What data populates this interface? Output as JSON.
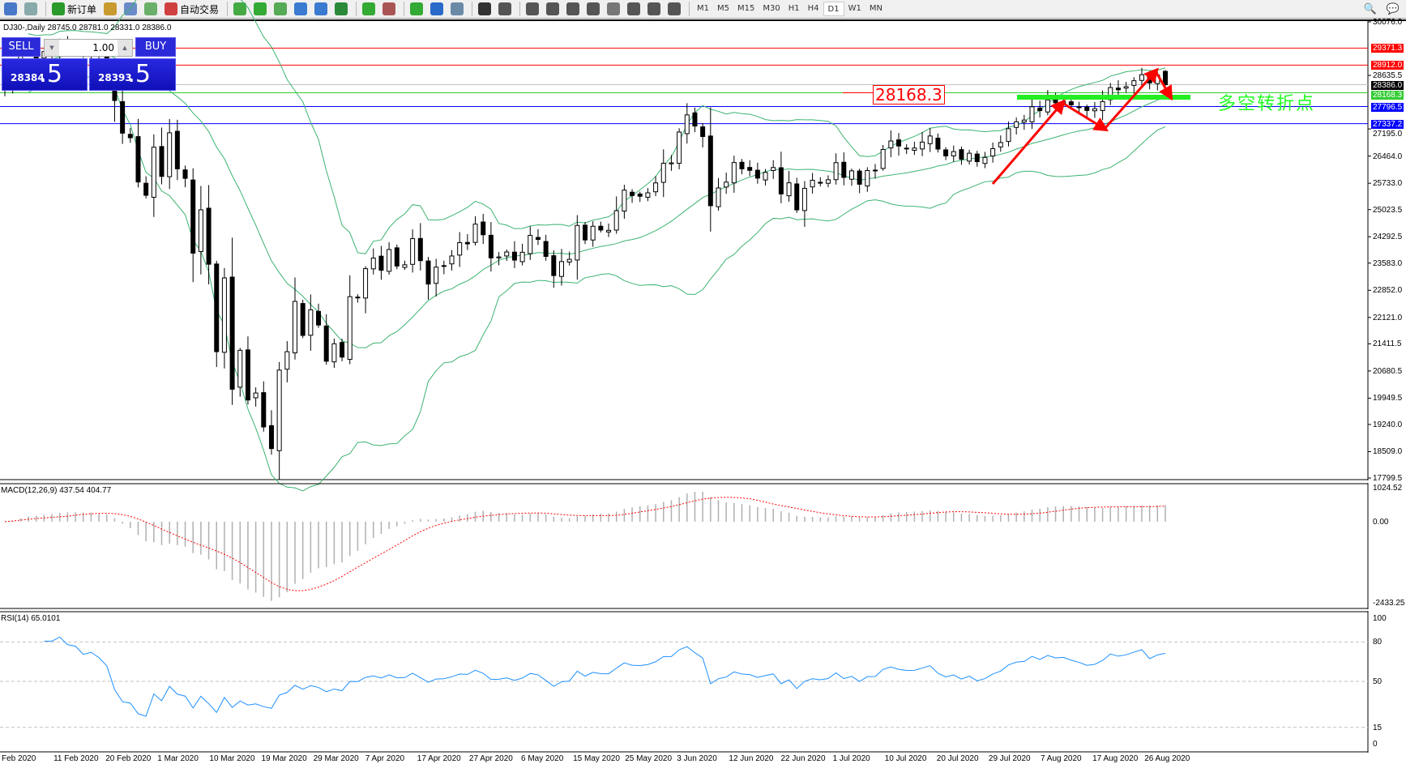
{
  "toolbar": {
    "items": [
      {
        "icon": "market-watch-icon",
        "color": "#4a78c8"
      },
      {
        "icon": "navigator-zoom-icon",
        "color": "#8aa"
      },
      {
        "sep": true
      },
      {
        "icon": "new-order-icon",
        "color": "#2a9a2a",
        "label": "新订单"
      },
      {
        "icon": "metaeditor-icon",
        "color": "#c89a30"
      },
      {
        "icon": "history-center-icon",
        "color": "#6a8ac8"
      },
      {
        "icon": "signals-icon",
        "color": "#6ab06a"
      },
      {
        "icon": "auto-trading-icon",
        "color": "#d04040",
        "label": "自动交易"
      },
      {
        "sep": true
      },
      {
        "icon": "bar-chart-icon",
        "color": "#4a4"
      },
      {
        "icon": "candlestick-icon",
        "color": "#3a3"
      },
      {
        "icon": "line-chart-icon",
        "color": "#5a5"
      },
      {
        "icon": "zoom-in-icon",
        "color": "#3a7ad0"
      },
      {
        "icon": "zoom-out-icon",
        "color": "#3a7ad0"
      },
      {
        "icon": "tile-windows-icon",
        "color": "#2a8a3a"
      },
      {
        "sep": true
      },
      {
        "icon": "autoscroll-icon",
        "color": "#3a3"
      },
      {
        "icon": "chart-shift-icon",
        "color": "#a55"
      },
      {
        "sep": true
      },
      {
        "icon": "indicators-icon",
        "color": "#3a3"
      },
      {
        "icon": "periods-clock-icon",
        "color": "#2a6ac8"
      },
      {
        "icon": "templates-icon",
        "color": "#6a8aa8"
      },
      {
        "sep": true
      },
      {
        "icon": "cursor-icon",
        "color": "#333"
      },
      {
        "icon": "crosshair-icon",
        "color": "#555"
      },
      {
        "sep": true
      },
      {
        "icon": "vertical-line-icon",
        "color": "#555"
      },
      {
        "icon": "horizontal-line-icon",
        "color": "#555"
      },
      {
        "icon": "trendline-icon",
        "color": "#555"
      },
      {
        "icon": "equidistant-channel-icon",
        "color": "#555"
      },
      {
        "icon": "fibonacci-icon",
        "color": "#777"
      },
      {
        "icon": "text-icon",
        "color": "#555"
      },
      {
        "icon": "text-label-icon",
        "color": "#555"
      },
      {
        "icon": "arrows-icon",
        "color": "#555"
      }
    ],
    "timeframes": [
      "M1",
      "M5",
      "M15",
      "M30",
      "H1",
      "H4",
      "D1",
      "W1",
      "MN"
    ],
    "active_timeframe": "D1"
  },
  "chart": {
    "header": "DJ30-,Daily  28745.0 28781.0 28331.0 28386.0",
    "one_click": {
      "sell": "SELL",
      "buy": "BUY",
      "lot": "1.00",
      "sell_price_main": "28384",
      "sell_price_frac": ".5",
      "buy_price_main": "28393",
      "buy_price_frac": ".5"
    },
    "price_axis": [
      "30076.0",
      "28635.5",
      "27195.0",
      "26464.0",
      "25733.0",
      "25023.5",
      "24292.5",
      "23583.0",
      "22852.0",
      "22121.0",
      "21411.5",
      "20680.5",
      "19949.5",
      "19240.0",
      "18509.0",
      "17799.5"
    ],
    "levels": [
      {
        "price": 29371.3,
        "label": "29371.3",
        "color": "#ff0000"
      },
      {
        "price": 28912.0,
        "label": "28912.0",
        "color": "#ff0000"
      },
      {
        "price": 28386.0,
        "label": "28386.0",
        "color": "#000000",
        "line": "#c0c0c0"
      },
      {
        "price": 28168.3,
        "label": "28168.3",
        "color": "#33cc33"
      },
      {
        "price": 27796.5,
        "label": "27796.5",
        "color": "#0000ff"
      },
      {
        "price": 27337.2,
        "label": "27337.2",
        "color": "#0000ff"
      }
    ],
    "annotation_box": "28168.3",
    "annotation_text": "多空转折点",
    "x_labels": [
      "Feb 2020",
      "11 Feb 2020",
      "20 Feb 2020",
      "1 Mar 2020",
      "10 Mar 2020",
      "19 Mar 2020",
      "29 Mar 2020",
      "7 Apr 2020",
      "17 Apr 2020",
      "27 Apr 2020",
      "6 May 2020",
      "15 May 2020",
      "25 May 2020",
      "3 Jun 2020",
      "12 Jun 2020",
      "22 Jun 2020",
      "1 Jul 2020",
      "10 Jul 2020",
      "20 Jul 2020",
      "29 Jul 2020",
      "7 Aug 2020",
      "17 Aug 2020",
      "26 Aug 2020"
    ],
    "closes": [
      28400,
      28807,
      29290,
      29379,
      29102,
      29276,
      29276,
      29551,
      29423,
      29398,
      29232,
      29348,
      29219,
      28992,
      27960,
      27081,
      26957,
      25766,
      25409,
      26703,
      25917,
      27091,
      26121,
      25865,
      23851,
      25018,
      23553,
      21200,
      23185,
      20189,
      21237,
      19899,
      20087,
      19174,
      18592,
      20704,
      21200,
      22552,
      21637,
      22327,
      21917,
      20943,
      21413,
      21053,
      22680,
      22654,
      23434,
      23719,
      23390,
      23949,
      23505,
      23538,
      24242,
      23650,
      23019,
      23475,
      23516,
      23775,
      24134,
      24101,
      24633,
      24346,
      23724,
      23749,
      23883,
      23664,
      23875,
      24331,
      24221,
      23764,
      23248,
      23625,
      23685,
      24597,
      24207,
      24575,
      24474,
      24465,
      24995,
      25548,
      25401,
      25383,
      25475,
      25742,
      26270,
      26281,
      27111,
      27572,
      27272,
      26990,
      25128,
      25606,
      25763,
      26290,
      26120,
      26080,
      25871,
      26025,
      26156,
      25445,
      25745,
      25016,
      25596,
      25813,
      25734,
      25827,
      26287,
      25890,
      26067,
      25706,
      26075,
      26086,
      26643,
      26870,
      26735,
      26672,
      26680,
      26840,
      27005,
      26652,
      26470,
      26584,
      26379,
      26540,
      26314,
      26428,
      26664,
      26828,
      27201,
      27387,
      27433,
      27791,
      27687,
      27977,
      27897,
      27931,
      27844,
      27779,
      27692,
      27739,
      27930,
      28308,
      28249,
      28332,
      28492,
      28654,
      28430,
      28645,
      28745
    ],
    "last_bar": {
      "open": 28745.0,
      "high": 28781.0,
      "low": 28331.0,
      "close": 28386.0
    },
    "colors": {
      "bands": "#3cb371",
      "bull": "#ffffff",
      "bear": "#000000",
      "arrow": "#ff0000",
      "turn_zone": "#22ee22"
    }
  },
  "macd": {
    "title": "MACD(12,26,9) 437.54 404.77",
    "axis": [
      "1024.52",
      "0.00",
      "-2433.25"
    ],
    "max": 1024.52,
    "min": -2433.25,
    "hist_color": "#b0b0b0",
    "signal_color": "#ff0000"
  },
  "rsi": {
    "title": "RSI(14) 65.0101",
    "axis": [
      "100",
      "80",
      "50",
      "15",
      "0"
    ],
    "levels": [
      80,
      50,
      15
    ],
    "color": "#1e90ff"
  }
}
